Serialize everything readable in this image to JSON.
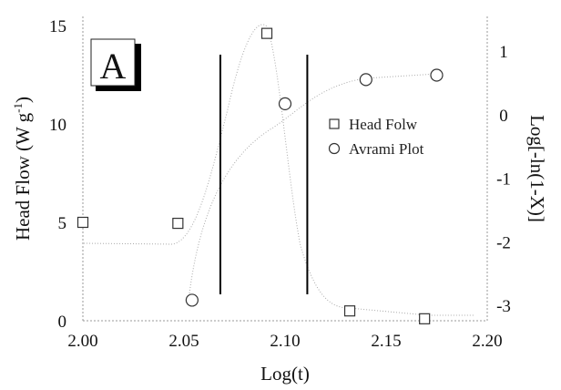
{
  "chart_data": {
    "type": "scatter",
    "panel_label": "A",
    "xlabel": "Log(t)",
    "ylabel_left": "Head Flow (W g",
    "ylabel_left_sup": "-1",
    "ylabel_left_close": ")",
    "ylabel_right": "Log[-ln(1-X)]",
    "xlim": [
      2.0,
      2.2
    ],
    "ylim_left": [
      0,
      15
    ],
    "ylim_right": [
      -3.5,
      1.5
    ],
    "x_ticks": [
      "2.00",
      "2.05",
      "2.10",
      "2.15",
      "2.20"
    ],
    "y_left_ticks": [
      "0",
      "5",
      "10",
      "15"
    ],
    "y_right_ticks": [
      "-3",
      "-2",
      "-1",
      "0",
      "1"
    ],
    "series": [
      {
        "name": "Head Folw",
        "marker": "square",
        "axis": "left",
        "x": [
          2.0,
          2.047,
          2.091,
          2.132,
          2.169
        ],
        "y": [
          5.0,
          4.95,
          14.6,
          0.5,
          0.1
        ]
      },
      {
        "name": "Avrami Plot",
        "marker": "circle",
        "axis": "right",
        "x": [
          2.054,
          2.1,
          2.14,
          2.175
        ],
        "y": [
          -2.92,
          0.17,
          0.55,
          0.62
        ]
      }
    ],
    "vertical_lines_x": [
      2.068,
      2.111
    ],
    "legend_position": "right-center",
    "grid": false
  }
}
